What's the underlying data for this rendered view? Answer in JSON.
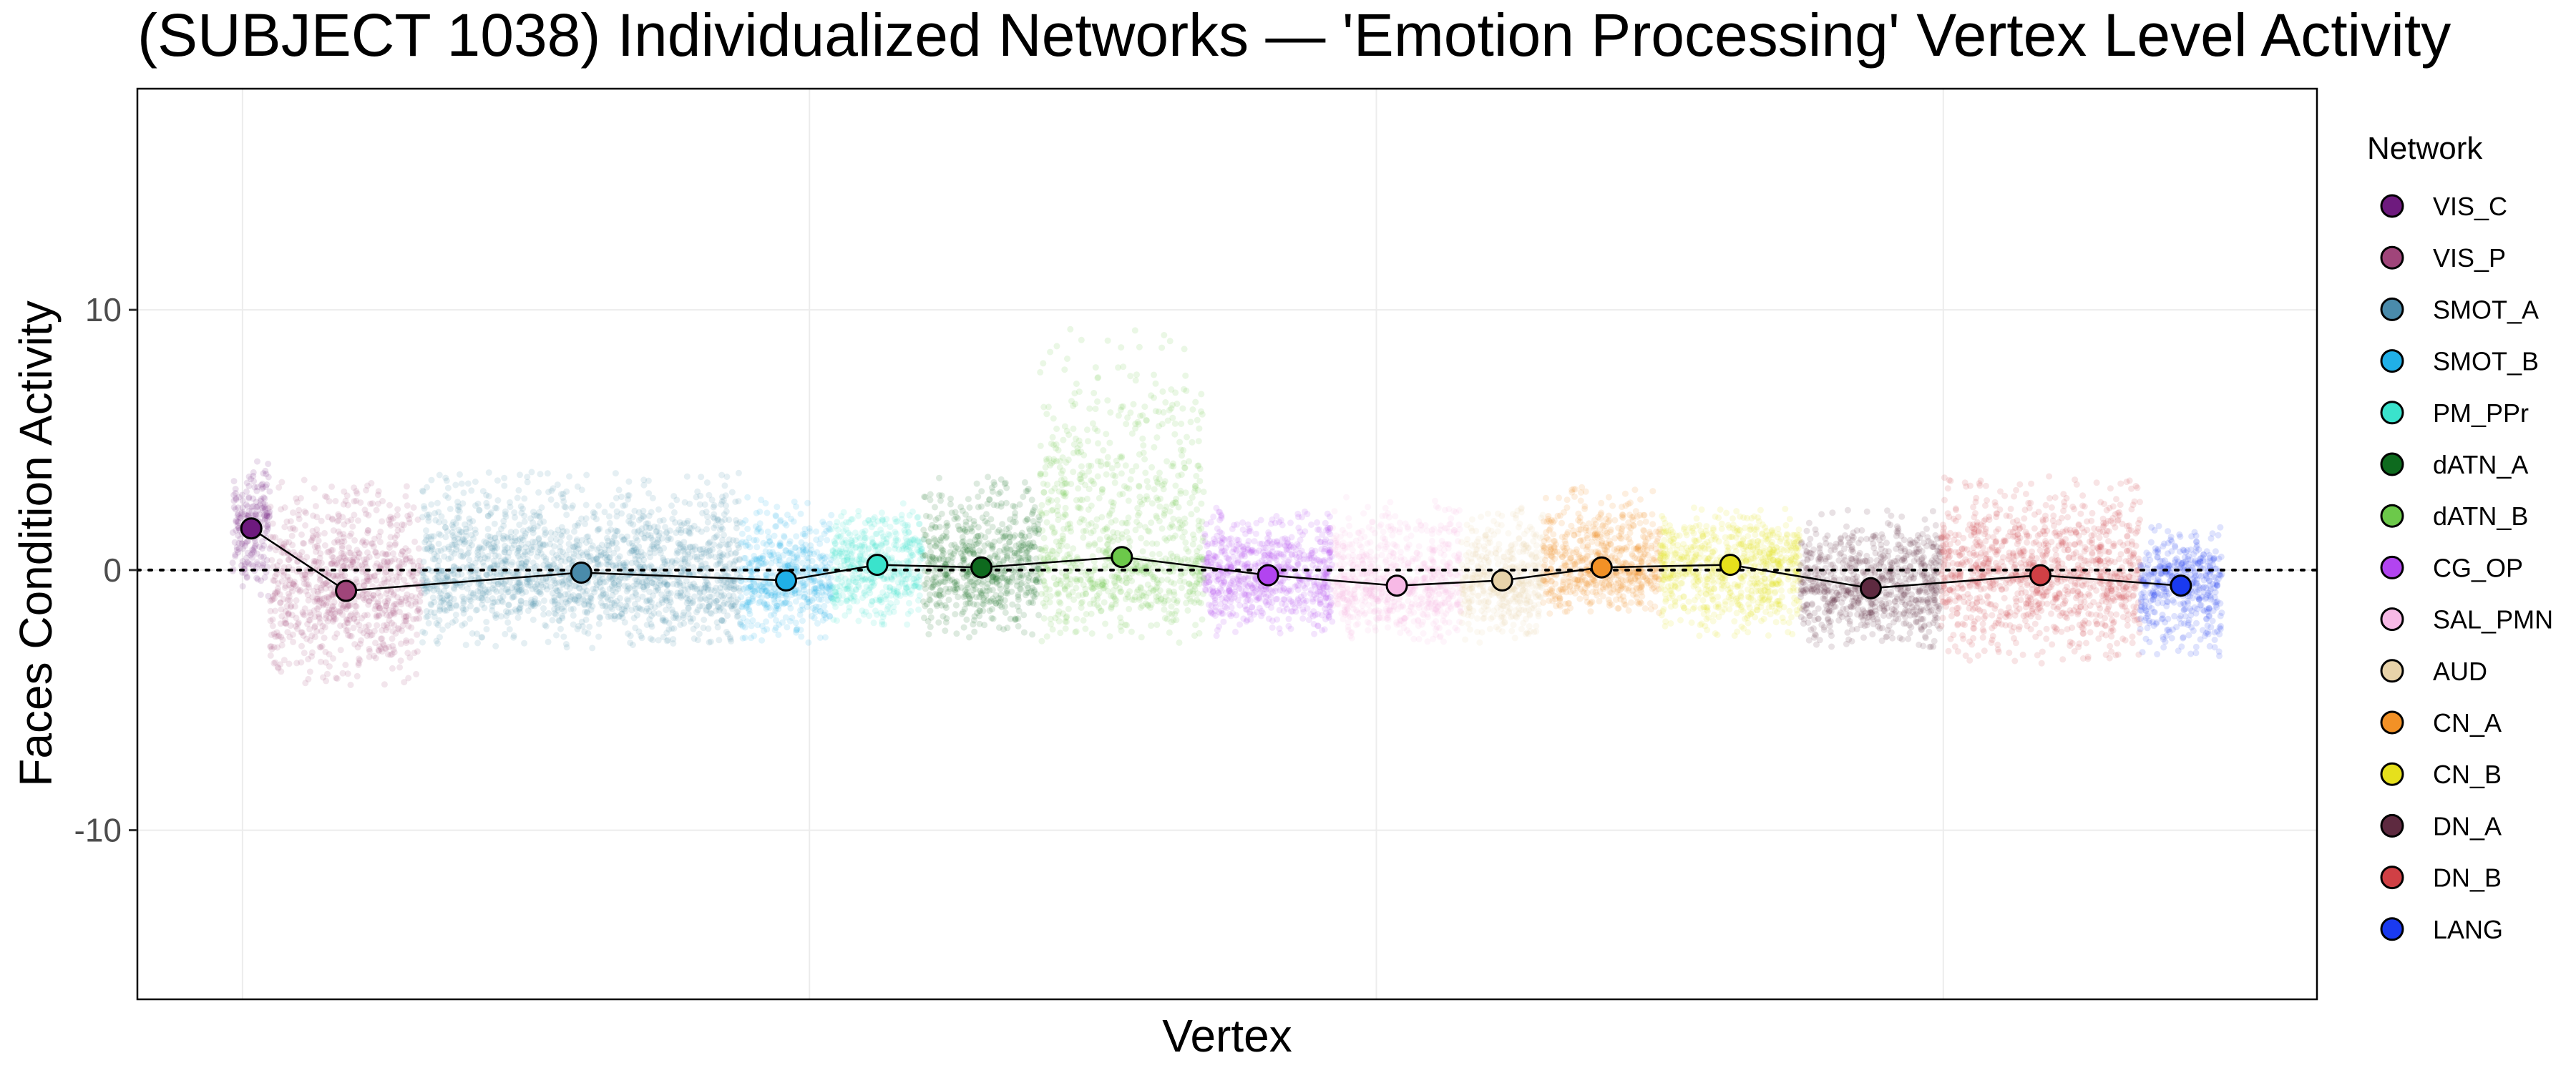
{
  "chart_data": {
    "type": "scatter",
    "title": "(SUBJECT 1038) Individualized Networks — 'Emotion Processing' Vertex Level Activity",
    "xlabel": "Vertex",
    "ylabel": "Faces Condition Activity",
    "ylim": [
      -16.5,
      18.5
    ],
    "yticks": [
      10,
      0,
      -10
    ],
    "ytick_labels": [
      "10",
      "0",
      "-10"
    ],
    "reference_line_y": 0,
    "grid": true,
    "legend_title": "Network",
    "legend_position": "right",
    "networks": [
      {
        "name": "VIS_C",
        "color": "#6E1A7E",
        "mean": 1.6,
        "vertex_range": [
          0,
          160
        ],
        "spread": [
          -1.2,
          4.2
        ]
      },
      {
        "name": "VIS_P",
        "color": "#A0457A",
        "mean": -0.8,
        "vertex_range": [
          160,
          810
        ],
        "spread": [
          -4.5,
          3.5
        ]
      },
      {
        "name": "SMOT_A",
        "color": "#4A8BAB",
        "mean": -0.1,
        "vertex_range": [
          810,
          2170
        ],
        "spread": [
          -3.0,
          3.8
        ]
      },
      {
        "name": "SMOT_B",
        "color": "#20B0E8",
        "mean": -0.4,
        "vertex_range": [
          2170,
          2560
        ],
        "spread": [
          -2.8,
          2.8
        ]
      },
      {
        "name": "PM_PPr",
        "color": "#3AE3CC",
        "mean": 0.2,
        "vertex_range": [
          2560,
          2950
        ],
        "spread": [
          -2.2,
          2.7
        ]
      },
      {
        "name": "dATN_A",
        "color": "#0E6A1E",
        "mean": 0.1,
        "vertex_range": [
          2950,
          3450
        ],
        "spread": [
          -2.6,
          3.6
        ]
      },
      {
        "name": "dATN_B",
        "color": "#6CC94A",
        "mean": 0.5,
        "vertex_range": [
          3450,
          4150
        ],
        "spread": [
          -2.8,
          9.5
        ]
      },
      {
        "name": "CG_OP",
        "color": "#B244F0",
        "mean": -0.2,
        "vertex_range": [
          4150,
          4700
        ],
        "spread": [
          -2.6,
          2.4
        ]
      },
      {
        "name": "SAL_PMN",
        "color": "#F7B9E6",
        "mean": -0.6,
        "vertex_range": [
          4700,
          5250
        ],
        "spread": [
          -2.8,
          2.8
        ]
      },
      {
        "name": "AUD",
        "color": "#E8D3A9",
        "mean": -0.4,
        "vertex_range": [
          5250,
          5600
        ],
        "spread": [
          -2.8,
          2.5
        ]
      },
      {
        "name": "CN_A",
        "color": "#F29126",
        "mean": 0.1,
        "vertex_range": [
          5600,
          6100
        ],
        "spread": [
          -1.8,
          3.2
        ]
      },
      {
        "name": "CN_B",
        "color": "#E6E01C",
        "mean": 0.2,
        "vertex_range": [
          6100,
          6700
        ],
        "spread": [
          -2.6,
          2.4
        ]
      },
      {
        "name": "DN_A",
        "color": "#5E2A40",
        "mean": -0.7,
        "vertex_range": [
          6700,
          7300
        ],
        "spread": [
          -3.0,
          2.4
        ]
      },
      {
        "name": "DN_B",
        "color": "#D04045",
        "mean": -0.2,
        "vertex_range": [
          7300,
          8150
        ],
        "spread": [
          -3.6,
          3.6
        ]
      },
      {
        "name": "LANG",
        "color": "#1A3AF0",
        "mean": -0.6,
        "vertex_range": [
          8150,
          8500
        ],
        "spread": [
          -3.4,
          1.8
        ]
      }
    ]
  }
}
